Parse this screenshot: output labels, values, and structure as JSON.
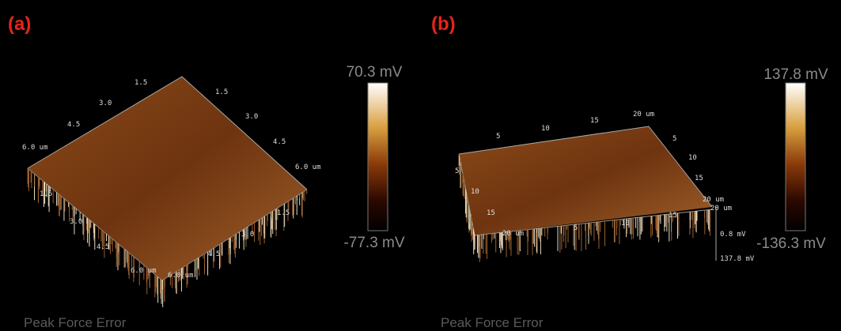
{
  "panels": [
    {
      "label": "(a)",
      "colorbar": {
        "max": "70.3 mV",
        "min": "-77.3 mV"
      },
      "caption": "Peak Force Error",
      "axes": {
        "back_left": [
          "1.5",
          "3.0",
          "4.5",
          "6.0 um"
        ],
        "back_right": [
          "1.5",
          "3.0",
          "4.5",
          "6.0 um"
        ],
        "front_left": [
          "1.5",
          "3.0",
          "4.5",
          "6.0 um"
        ],
        "front_right": [
          "1.5",
          "3.0",
          "4.5",
          "6.0 um"
        ]
      }
    },
    {
      "label": "(b)",
      "colorbar": {
        "max": "137.8 mV",
        "min": "-136.3 mV"
      },
      "caption": "Peak Force Error",
      "axes": {
        "back": [
          "5",
          "10",
          "15",
          "20 um"
        ],
        "right": [
          "5",
          "10",
          "15",
          "20 um"
        ],
        "left": [
          "5",
          "10",
          "15",
          "20 um"
        ],
        "front": [
          "5",
          "10",
          "15",
          "20 um"
        ],
        "z": [
          "0.8 mV",
          "137.8 mV"
        ]
      }
    }
  ]
}
